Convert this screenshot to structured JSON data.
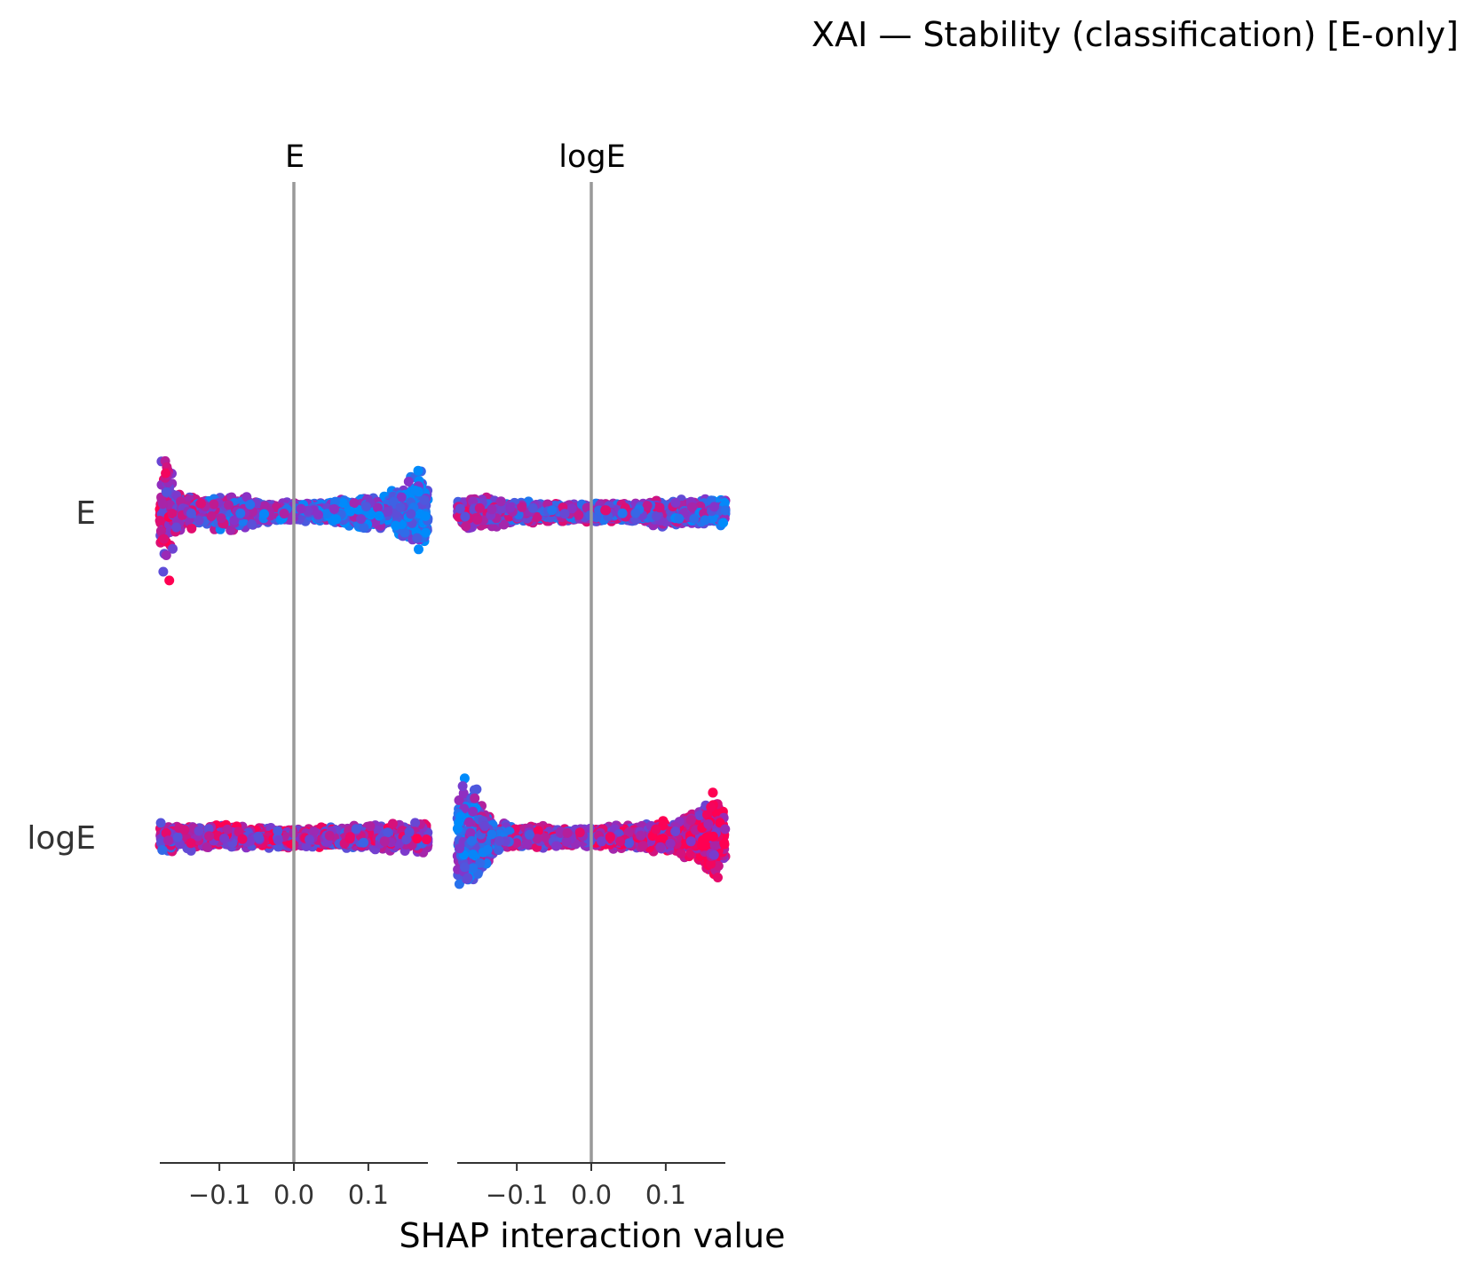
{
  "chart_data": {
    "type": "scatter",
    "title": "XAI — Stability (classification) [E-only]",
    "xlabel": "SHAP interaction value",
    "features": [
      "E",
      "logE"
    ],
    "columns": [
      "E",
      "logE"
    ],
    "rows": [
      "E",
      "logE"
    ],
    "xlim": [
      -0.18,
      0.18
    ],
    "xticks": [
      -0.1,
      0.0,
      0.1
    ],
    "xtick_labels": [
      "−0.1",
      "0.0",
      "0.1"
    ],
    "zero_line_color": "#999999",
    "colormap": {
      "low": "#008bfb",
      "high": "#ff0052"
    },
    "panels": [
      {
        "row": "E",
        "column": "E",
        "x_range": [
          -0.18,
          0.18
        ],
        "profile": [
          [
            -0.18,
            0.16
          ],
          [
            -0.17,
            0.33
          ],
          [
            -0.16,
            0.12
          ],
          [
            -0.15,
            0.06
          ],
          [
            -0.12,
            0.06
          ],
          [
            -0.09,
            0.08
          ],
          [
            -0.06,
            0.06
          ],
          [
            -0.03,
            0.04
          ],
          [
            0.0,
            0.04
          ],
          [
            0.03,
            0.04
          ],
          [
            0.06,
            0.05
          ],
          [
            0.09,
            0.07
          ],
          [
            0.12,
            0.07
          ],
          [
            0.15,
            0.12
          ],
          [
            0.17,
            0.22
          ],
          [
            0.18,
            0.14
          ]
        ],
        "color_profile": [
          [
            -0.18,
            0.75
          ],
          [
            -0.16,
            0.6
          ],
          [
            -0.12,
            0.45
          ],
          [
            -0.05,
            0.4
          ],
          [
            0.0,
            0.35
          ],
          [
            0.06,
            0.3
          ],
          [
            0.12,
            0.2
          ],
          [
            0.18,
            0.08
          ]
        ]
      },
      {
        "row": "E",
        "column": "logE",
        "x_range": [
          -0.18,
          0.18
        ],
        "profile": [
          [
            -0.18,
            0.05
          ],
          [
            -0.16,
            0.07
          ],
          [
            -0.13,
            0.06
          ],
          [
            -0.1,
            0.05
          ],
          [
            -0.05,
            0.04
          ],
          [
            0.0,
            0.04
          ],
          [
            0.05,
            0.04
          ],
          [
            0.1,
            0.06
          ],
          [
            0.14,
            0.05
          ],
          [
            0.18,
            0.06
          ]
        ],
        "color_profile": [
          [
            -0.18,
            0.55
          ],
          [
            -0.1,
            0.45
          ],
          [
            0.0,
            0.5
          ],
          [
            0.08,
            0.5
          ],
          [
            0.14,
            0.35
          ],
          [
            0.18,
            0.3
          ]
        ]
      },
      {
        "row": "logE",
        "column": "E",
        "x_range": [
          -0.18,
          0.18
        ],
        "profile": [
          [
            -0.18,
            0.06
          ],
          [
            -0.15,
            0.05
          ],
          [
            -0.1,
            0.05
          ],
          [
            -0.05,
            0.04
          ],
          [
            0.0,
            0.04
          ],
          [
            0.05,
            0.04
          ],
          [
            0.1,
            0.05
          ],
          [
            0.15,
            0.06
          ],
          [
            0.18,
            0.06
          ]
        ],
        "color_profile": [
          [
            -0.18,
            0.55
          ],
          [
            -0.1,
            0.75
          ],
          [
            0.0,
            0.65
          ],
          [
            0.08,
            0.6
          ],
          [
            0.14,
            0.65
          ],
          [
            0.18,
            0.6
          ]
        ]
      },
      {
        "row": "logE",
        "column": "logE",
        "x_range": [
          -0.18,
          0.18
        ],
        "profile": [
          [
            -0.18,
            0.17
          ],
          [
            -0.17,
            0.26
          ],
          [
            -0.15,
            0.17
          ],
          [
            -0.13,
            0.06
          ],
          [
            -0.1,
            0.05
          ],
          [
            -0.05,
            0.04
          ],
          [
            0.0,
            0.04
          ],
          [
            0.05,
            0.05
          ],
          [
            0.1,
            0.06
          ],
          [
            0.14,
            0.1
          ],
          [
            0.16,
            0.22
          ],
          [
            0.18,
            0.12
          ]
        ],
        "color_profile": [
          [
            -0.18,
            0.2
          ],
          [
            -0.14,
            0.4
          ],
          [
            -0.08,
            0.6
          ],
          [
            0.0,
            0.65
          ],
          [
            0.1,
            0.7
          ],
          [
            0.16,
            0.8
          ],
          [
            0.18,
            0.88
          ]
        ]
      }
    ],
    "points_per_panel": 2000
  }
}
